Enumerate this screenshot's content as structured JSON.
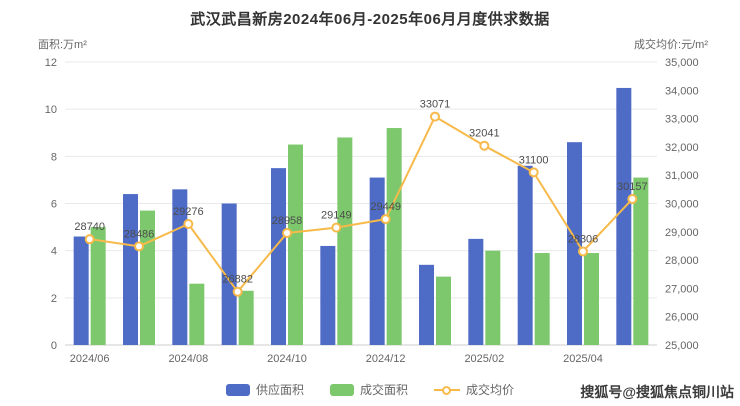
{
  "title": "武汉武昌新房2024年06月-2025年06月月度供求数据",
  "left_axis": {
    "name": "面积:万m²",
    "ticks": [
      12,
      10,
      8,
      6,
      4,
      2,
      0
    ]
  },
  "right_axis": {
    "name": "成交均价:元/m²",
    "ticks": [
      "35,000",
      "34,000",
      "33,000",
      "32,000",
      "31,000",
      "30,000",
      "29,000",
      "28,000",
      "27,000",
      "26,000",
      "25,000"
    ]
  },
  "legend": [
    {
      "label": "供应面积",
      "type": "bar",
      "color": "#4E6BC5"
    },
    {
      "label": "成交面积",
      "type": "bar",
      "color": "#7DC86C"
    },
    {
      "label": "成交均价",
      "type": "line",
      "color": "#F7BA4A"
    }
  ],
  "watermark": "搜狐号@搜狐焦点铜川站",
  "colors": {
    "grid": "#e9e9e9",
    "axis_line": "#cccccc",
    "tick_text": "#666666",
    "data_label": "#4d4d4d"
  },
  "chart_data": {
    "type": "combo",
    "categories": [
      "2024/06",
      "2024/07",
      "2024/08",
      "2024/09",
      "2024/10",
      "2024/11",
      "2024/12",
      "2025/01",
      "2025/02",
      "2025/03",
      "2025/04",
      "2025/05"
    ],
    "x_axis_visible_labels": [
      "2024/06",
      "2024/08",
      "2024/10",
      "2024/12",
      "2025/02",
      "2025/04"
    ],
    "left_ylim": [
      0,
      12
    ],
    "right_ylim": [
      25000,
      35000
    ],
    "grid": true,
    "legend_position": "bottom",
    "series": [
      {
        "name": "供应面积",
        "type": "bar",
        "axis": "left",
        "values": [
          4.6,
          6.4,
          6.6,
          6.0,
          7.5,
          4.2,
          7.1,
          3.4,
          4.5,
          7.6,
          8.6,
          10.9
        ]
      },
      {
        "name": "成交面积",
        "type": "bar",
        "axis": "left",
        "values": [
          5.0,
          5.7,
          2.6,
          2.3,
          8.5,
          8.8,
          9.2,
          2.9,
          4.0,
          3.9,
          3.9,
          7.1
        ]
      },
      {
        "name": "成交均价",
        "type": "line",
        "axis": "right",
        "values": [
          28740,
          28486,
          29276,
          26882,
          28958,
          29149,
          29449,
          33071,
          32041,
          31100,
          28306,
          30157
        ]
      }
    ]
  }
}
